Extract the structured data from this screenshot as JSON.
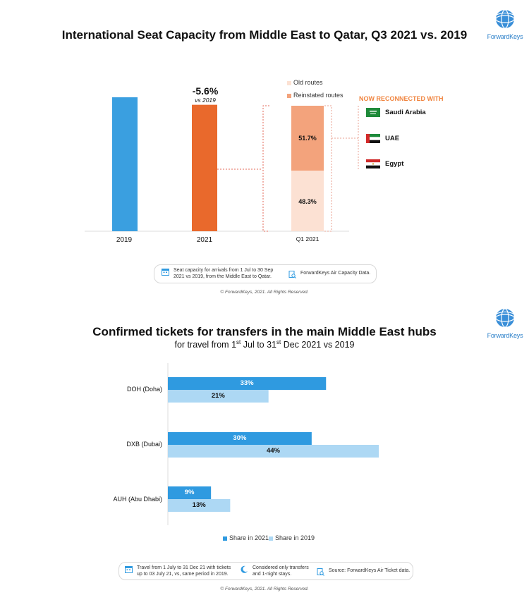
{
  "chart_data": [
    {
      "type": "bar",
      "title": "International Seat Capacity from Middle East to Qatar, Q3 2021 vs. 2019",
      "categories": [
        "2019",
        "2021"
      ],
      "values": [
        100,
        94.4
      ],
      "colors": [
        "#3a9fe0",
        "#e9692c"
      ],
      "annotation": {
        "change": "-5.6%",
        "change_sub": "vs 2019"
      },
      "grid": false
    },
    {
      "type": "bar",
      "stacked": true,
      "categories": [
        "Q1 2021"
      ],
      "series": [
        {
          "name": "Old routes",
          "values": [
            48.3
          ],
          "label": "48.3%",
          "color": "#fce1d3"
        },
        {
          "name": "Reinstated routes",
          "values": [
            51.7
          ],
          "label": "51.7%",
          "color": "#f3a37c"
        }
      ],
      "legend": "top"
    },
    {
      "type": "bar",
      "orientation": "horizontal",
      "title": "Confirmed tickets for transfers in the main Middle East hubs",
      "subtitle": {
        "pre": "for travel from 1",
        "sup1": "st",
        "mid": " Jul to 31",
        "sup2": "st",
        "post": " Dec 2021 vs 2019"
      },
      "categories": [
        "DOH (Doha)",
        "DXB (Dubai)",
        "AUH (Abu Dhabi)"
      ],
      "series": [
        {
          "name": "Share in 2021",
          "values": [
            33,
            30,
            9
          ],
          "labels": [
            "33%",
            "30%",
            "9%"
          ],
          "color": "#2f9ae0"
        },
        {
          "name": "Share in 2019",
          "values": [
            21,
            44,
            13
          ],
          "labels": [
            "21%",
            "44%",
            "13%"
          ],
          "color": "#add8f4"
        }
      ],
      "xlim": [
        0,
        46
      ],
      "legend": "bottom"
    }
  ],
  "reconnected": {
    "heading": "NOW RECONNECTED WITH",
    "countries": [
      "Saudi Arabia",
      "UAE",
      "Egypt"
    ]
  },
  "logo": {
    "text": "ForwardKeys"
  },
  "notes1": {
    "capacity": "Seat capacity for arrivals from 1 Jul to 30 Sep 2021 vs 2019, from the Middle East to Qatar.",
    "source": "ForwardKeys Air Capacity Data."
  },
  "notes2": {
    "travel": "Travel from 1 July to 31 Dec 21 with tickets up to 03 July 21, vs, same period in 2019.",
    "stays": "Considered only transfers and 1-night stays.",
    "source": "Source: ForwardKeys Air Ticket data."
  },
  "copyright": "© ForwardKeys, 2021. All Rights Reserved.",
  "colors": {
    "accent_orange": "#e9692c",
    "accent_blue": "#2f9ae0",
    "heading_orange": "#f0843f"
  }
}
